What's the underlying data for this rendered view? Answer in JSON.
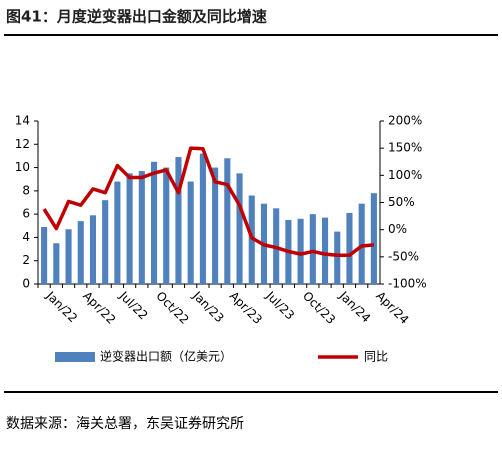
{
  "chart_data": {
    "type": "bar-line",
    "title": "图41：月度逆变器出口金额及同比增速",
    "source": "数据来源：海关总署，东吴证券研究所",
    "categories": [
      "Jan/22",
      null,
      null,
      "Apr/22",
      null,
      null,
      "Jul/22",
      null,
      null,
      "Oct/22",
      null,
      null,
      "Jan/23",
      null,
      null,
      "Apr/23",
      null,
      null,
      "Jul/23",
      null,
      null,
      "Oct/23",
      null,
      null,
      "Jan/24",
      null,
      null,
      "Apr/24"
    ],
    "series": [
      {
        "name": "逆变器出口额（亿美元）",
        "type": "bar",
        "color": "#4f81bd",
        "values": [
          4.9,
          3.5,
          4.7,
          5.4,
          5.9,
          7.2,
          8.8,
          9.5,
          9.7,
          10.5,
          10.0,
          10.9,
          8.8,
          11.2,
          10.0,
          10.8,
          9.5,
          7.6,
          6.9,
          6.5,
          5.5,
          5.6,
          6.0,
          5.7,
          4.5,
          6.1,
          6.9,
          7.8
        ]
      },
      {
        "name": "同比",
        "type": "line",
        "axis": "y2",
        "color": "#c00000",
        "values": [
          38,
          2,
          52,
          45,
          75,
          68,
          118,
          96,
          96,
          104,
          110,
          68,
          150,
          149,
          88,
          83,
          45,
          -15,
          -28,
          -33,
          -40,
          -45,
          -40,
          -45,
          -47,
          -47,
          -30,
          -28
        ]
      }
    ],
    "ylim": [
      0,
      14
    ],
    "yticks": [
      0,
      2,
      4,
      6,
      8,
      10,
      12,
      14
    ],
    "y2lim": [
      -100,
      200
    ],
    "y2ticks": [
      {
        "value": -100,
        "label": "-100%"
      },
      {
        "value": -50,
        "label": "-50%"
      },
      {
        "value": 0,
        "label": "0%"
      },
      {
        "value": 50,
        "label": "50%"
      },
      {
        "value": 100,
        "label": "100%"
      },
      {
        "value": 150,
        "label": "150%"
      },
      {
        "value": 200,
        "label": "200%"
      }
    ]
  }
}
